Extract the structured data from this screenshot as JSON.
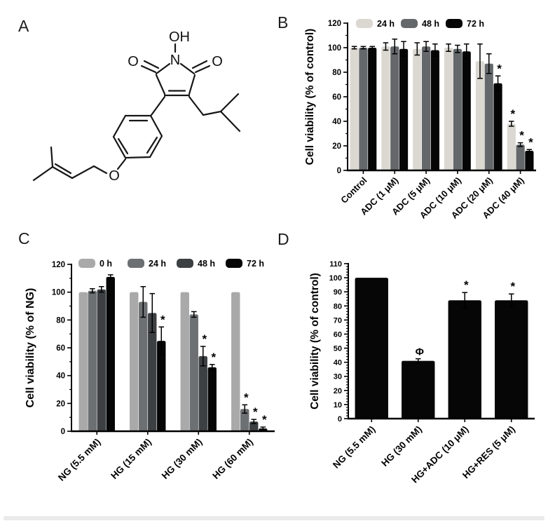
{
  "figure": {
    "background": "#ffffff",
    "panel_labels": {
      "a": "A",
      "b": "B",
      "c": "C",
      "d": "D"
    }
  },
  "molecule": {
    "atom_labels": {
      "hydroxyl": "OH",
      "nitrogen": "N",
      "carbonyl_left": "O",
      "carbonyl_right": "O",
      "ether_oxygen": "O"
    }
  },
  "chart_data": [
    {
      "panel": "panel_b",
      "type": "bar",
      "title": "",
      "ylabel": "Cell viability (% of control)",
      "ylim": [
        0,
        120
      ],
      "ytick_step": 20,
      "minor_tick_step": 10,
      "grid": false,
      "legend_position": "top",
      "categories": [
        "Control",
        "ADC (1 μM)",
        "ADC (5 μM)",
        "ADC (10 μM)",
        "ADC (20 μM)",
        "ADC (40 μM)"
      ],
      "series": [
        {
          "name": "24 h",
          "color": "#dbd8d2",
          "values": [
            100,
            101,
            99,
            100,
            89,
            38
          ],
          "err": [
            1,
            3,
            5,
            3,
            14,
            2
          ],
          "sig": [
            "",
            "",
            "",
            "",
            "",
            "*"
          ]
        },
        {
          "name": "48 h",
          "color": "#64686b",
          "values": [
            100,
            101,
            101,
            99,
            87,
            21
          ],
          "err": [
            1,
            6,
            4,
            3,
            8,
            1.5
          ],
          "sig": [
            "",
            "",
            "",
            "",
            "",
            "*"
          ]
        },
        {
          "name": "72 h",
          "color": "#060606",
          "values": [
            100,
            99,
            98,
            97,
            71,
            16
          ],
          "err": [
            1,
            6,
            5,
            6,
            6,
            1
          ],
          "sig": [
            "",
            "",
            "",
            "",
            "*",
            "*"
          ]
        }
      ]
    },
    {
      "panel": "panel_c",
      "type": "bar",
      "title": "",
      "ylabel": "Cell viability (% of NG)",
      "ylim": [
        0,
        120
      ],
      "ytick_step": 20,
      "minor_tick_step": 10,
      "grid": false,
      "legend_position": "top",
      "categories": [
        "NG (5.5 mM)",
        "HG (15 mM)",
        "HG (30 mM)",
        "HG (60 mM)"
      ],
      "series": [
        {
          "name": "0 h",
          "color": "#a9a9a9",
          "values": [
            100,
            100,
            100,
            100
          ],
          "err": [
            0,
            0,
            0,
            0
          ],
          "sig": [
            "",
            "",
            "",
            ""
          ]
        },
        {
          "name": "24 h",
          "color": "#6d7072",
          "values": [
            101,
            93,
            84,
            16
          ],
          "err": [
            1.5,
            11,
            2,
            3
          ],
          "sig": [
            "",
            "",
            "",
            "*"
          ]
        },
        {
          "name": "48 h",
          "color": "#3c4042",
          "values": [
            102,
            85,
            54,
            7
          ],
          "err": [
            2,
            14,
            7,
            1.5
          ],
          "sig": [
            "",
            "",
            "*",
            "*"
          ]
        },
        {
          "name": "72 h",
          "color": "#060606",
          "values": [
            111,
            65,
            46,
            2
          ],
          "err": [
            1.5,
            10,
            2,
            1
          ],
          "sig": [
            "",
            "*",
            "*",
            "*"
          ]
        }
      ]
    },
    {
      "panel": "panel_d",
      "type": "bar",
      "title": "",
      "ylabel": "Cell viability (% of control)",
      "ylim": [
        0,
        110
      ],
      "ytick_step": 10,
      "minor_tick_step": 2,
      "grid": false,
      "legend_position": "none",
      "categories": [
        "NG (5.5 mM)",
        "HG (30 mM)",
        "HG+ADC (10 μM)",
        "HG+RES (5 μM)"
      ],
      "series": [
        {
          "name": "",
          "color": "#060606",
          "values": [
            100,
            41,
            84,
            84
          ],
          "err": [
            0,
            1.5,
            5.5,
            4.5
          ],
          "sig": [
            "",
            "Φ",
            "*",
            "*"
          ]
        }
      ]
    }
  ]
}
